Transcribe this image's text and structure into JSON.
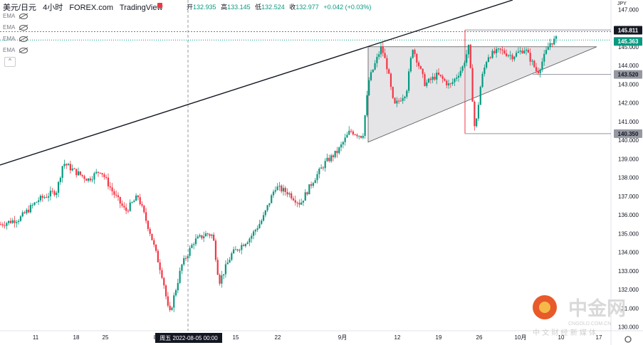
{
  "header": {
    "symbol": "美元/日元",
    "interval": "4小时",
    "source": "FOREX.com",
    "platform": "TradingView",
    "ohlc": [
      {
        "label": "开",
        "value": "132.935"
      },
      {
        "label": "高",
        "value": "133.145"
      },
      {
        "label": "低",
        "value": "132.524"
      },
      {
        "label": "收",
        "value": "132.977"
      },
      {
        "label": "",
        "value": "+0.042 (+0.03%)"
      }
    ]
  },
  "indicators": [
    "EMA",
    "EMA",
    "EMA",
    "EMA"
  ],
  "currency": "JPY",
  "chart_data": {
    "type": "candlestick",
    "y_axis": {
      "range": [
        129.8,
        147.2
      ],
      "ticks": [
        "147.000",
        "146.000",
        "145.000",
        "144.000",
        "143.000",
        "142.000",
        "141.000",
        "140.000",
        "139.000",
        "138.000",
        "137.000",
        "136.000",
        "135.000",
        "134.000",
        "133.000",
        "132.000",
        "131.000",
        "130.000"
      ]
    },
    "x_axis": {
      "ticks": [
        "11",
        "18",
        "25",
        "8",
        "15",
        "22",
        "9月",
        "12",
        "19",
        "26",
        "10月",
        "10",
        "17"
      ],
      "tick_positions_index": [
        0,
        1,
        2,
        3,
        4,
        5,
        6,
        7,
        8,
        9,
        10,
        11,
        12
      ],
      "crosshair_label": "周五 2022-08-05   00:00"
    },
    "price_labels": [
      {
        "value": "145.811",
        "style": "dark"
      },
      {
        "value": "145.363",
        "style": "green"
      },
      {
        "value": "143.520",
        "style": "gray"
      },
      {
        "value": "140.350",
        "style": "gray"
      }
    ],
    "levels": [
      145.811,
      145.363,
      143.52,
      140.35
    ],
    "trendline": {
      "from": [
        0,
        137.9
      ],
      "to": [
        1,
        147.4
      ]
    },
    "triangle": {
      "apex_high": 145.0,
      "base_low": 139.9
    },
    "series_path": [
      [
        0,
        135.5
      ],
      [
        0.03,
        135.8
      ],
      [
        0.06,
        136.8
      ],
      [
        0.09,
        137.3
      ],
      [
        0.1,
        138.8
      ],
      [
        0.12,
        138.3
      ],
      [
        0.14,
        137.9
      ],
      [
        0.16,
        138.4
      ],
      [
        0.18,
        137.2
      ],
      [
        0.2,
        136.2
      ],
      [
        0.22,
        137.0
      ],
      [
        0.24,
        135.0
      ],
      [
        0.26,
        132.6
      ],
      [
        0.27,
        130.6
      ],
      [
        0.29,
        133.3
      ],
      [
        0.31,
        134.6
      ],
      [
        0.33,
        135.0
      ],
      [
        0.34,
        134.9
      ],
      [
        0.35,
        132.4
      ],
      [
        0.37,
        133.9
      ],
      [
        0.4,
        134.8
      ],
      [
        0.42,
        135.8
      ],
      [
        0.44,
        137.5
      ],
      [
        0.46,
        137.2
      ],
      [
        0.48,
        136.6
      ],
      [
        0.5,
        137.8
      ],
      [
        0.52,
        138.8
      ],
      [
        0.54,
        139.4
      ],
      [
        0.56,
        140.5
      ],
      [
        0.58,
        140.2
      ],
      [
        0.59,
        143.2
      ],
      [
        0.61,
        145.0
      ],
      [
        0.62,
        143.8
      ],
      [
        0.63,
        141.8
      ],
      [
        0.65,
        142.6
      ],
      [
        0.66,
        145.0
      ],
      [
        0.68,
        143.0
      ],
      [
        0.7,
        143.5
      ],
      [
        0.72,
        142.9
      ],
      [
        0.74,
        143.9
      ],
      [
        0.75,
        145.0
      ],
      [
        0.76,
        140.4
      ],
      [
        0.77,
        143.2
      ],
      [
        0.78,
        144.5
      ],
      [
        0.8,
        144.8
      ],
      [
        0.82,
        144.5
      ],
      [
        0.84,
        144.9
      ],
      [
        0.86,
        143.6
      ],
      [
        0.88,
        145.2
      ],
      [
        0.89,
        145.4
      ]
    ]
  },
  "watermark": {
    "brand": "中金网",
    "site": "CNGOLD.COM.CN",
    "tagline": "中 文 财 经 新 媒 体"
  }
}
